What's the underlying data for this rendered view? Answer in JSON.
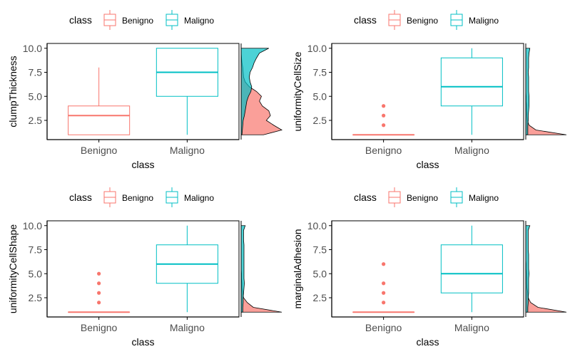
{
  "colors": {
    "benigno": "#F8766D",
    "maligno": "#00BFC4",
    "benigno_fill": "#F8766D",
    "maligno_fill": "#00BFC4",
    "axis": "#000000",
    "tick_text": "#4d4d4d"
  },
  "chart_data": [
    {
      "type": "box",
      "xlabel": "class",
      "ylabel": "clumpThickness",
      "legend": {
        "title": "class",
        "entries": [
          "Benigno",
          "Maligno"
        ],
        "placement": "top"
      },
      "categories": [
        "Benigno",
        "Maligno"
      ],
      "ylim": [
        0.5,
        10.5
      ],
      "yticks": [
        "2.5",
        "5.0",
        "7.5",
        "10.0"
      ],
      "ytick_values": [
        2.5,
        5.0,
        7.5,
        10.0
      ],
      "boxes": [
        {
          "name": "Benigno",
          "min": 1,
          "q1": 1,
          "median": 3,
          "q3": 4,
          "max": 8,
          "outliers": []
        },
        {
          "name": "Maligno",
          "min": 1,
          "q1": 5,
          "median": 7.5,
          "q3": 10,
          "max": 10,
          "outliers": []
        }
      ],
      "density": {
        "y": [
          1,
          1.5,
          2,
          2.5,
          3,
          3.5,
          4,
          4.5,
          5,
          5.5,
          6,
          6.5,
          7,
          7.5,
          8,
          8.5,
          9,
          9.5,
          10
        ],
        "Benigno": [
          0.55,
          1.0,
          0.8,
          0.62,
          0.72,
          0.68,
          0.52,
          0.45,
          0.5,
          0.38,
          0.2,
          0.1,
          0.06,
          0.05,
          0.04,
          0.02,
          0.01,
          0.0,
          0.0
        ],
        "Maligno": [
          0.02,
          0.03,
          0.04,
          0.05,
          0.08,
          0.1,
          0.12,
          0.14,
          0.18,
          0.24,
          0.26,
          0.22,
          0.2,
          0.22,
          0.28,
          0.32,
          0.38,
          0.45,
          0.68
        ]
      }
    },
    {
      "type": "box",
      "xlabel": "class",
      "ylabel": "uniformityCellSize",
      "legend": {
        "title": "class",
        "entries": [
          "Benigno",
          "Maligno"
        ],
        "placement": "top"
      },
      "categories": [
        "Benigno",
        "Maligno"
      ],
      "ylim": [
        0.5,
        10.5
      ],
      "yticks": [
        "2.5",
        "5.0",
        "7.5",
        "10.0"
      ],
      "ytick_values": [
        2.5,
        5.0,
        7.5,
        10.0
      ],
      "boxes": [
        {
          "name": "Benigno",
          "min": 1,
          "q1": 1,
          "median": 1,
          "q3": 1,
          "max": 1,
          "outliers": [
            2,
            3,
            4
          ]
        },
        {
          "name": "Maligno",
          "min": 1,
          "q1": 4,
          "median": 6,
          "q3": 9,
          "max": 10,
          "outliers": []
        }
      ],
      "density": {
        "y": [
          1,
          1.5,
          2,
          2.5,
          3,
          3.5,
          4,
          4.5,
          5,
          5.5,
          6,
          6.5,
          7,
          7.5,
          8,
          8.5,
          9,
          9.5,
          10
        ],
        "Benigno": [
          1.0,
          0.25,
          0.08,
          0.04,
          0.03,
          0.02,
          0.02,
          0.01,
          0.01,
          0.0,
          0.0,
          0.0,
          0.0,
          0.0,
          0.0,
          0.0,
          0.0,
          0.0,
          0.0
        ],
        "Maligno": [
          0.05,
          0.05,
          0.05,
          0.06,
          0.06,
          0.07,
          0.08,
          0.08,
          0.08,
          0.07,
          0.07,
          0.07,
          0.07,
          0.06,
          0.07,
          0.07,
          0.07,
          0.08,
          0.1
        ]
      }
    },
    {
      "type": "box",
      "xlabel": "class",
      "ylabel": "uniformityCellShape",
      "legend": {
        "title": "class",
        "entries": [
          "Benigno",
          "Maligno"
        ],
        "placement": "top"
      },
      "categories": [
        "Benigno",
        "Maligno"
      ],
      "ylim": [
        0.5,
        10.5
      ],
      "yticks": [
        "2.5",
        "5.0",
        "7.5",
        "10.0"
      ],
      "ytick_values": [
        2.5,
        5.0,
        7.5,
        10.0
      ],
      "boxes": [
        {
          "name": "Benigno",
          "min": 1,
          "q1": 1,
          "median": 1,
          "q3": 1,
          "max": 1,
          "outliers": [
            2,
            3,
            4,
            5
          ]
        },
        {
          "name": "Maligno",
          "min": 1,
          "q1": 4,
          "median": 6,
          "q3": 8,
          "max": 10,
          "outliers": []
        }
      ],
      "density": {
        "y": [
          1,
          1.5,
          2,
          2.5,
          3,
          3.5,
          4,
          4.5,
          5,
          5.5,
          6,
          6.5,
          7,
          7.5,
          8,
          8.5,
          9,
          9.5,
          10
        ],
        "Benigno": [
          1.0,
          0.3,
          0.15,
          0.06,
          0.04,
          0.02,
          0.02,
          0.01,
          0.01,
          0.0,
          0.0,
          0.0,
          0.0,
          0.0,
          0.0,
          0.0,
          0.0,
          0.0,
          0.0
        ],
        "Maligno": [
          0.04,
          0.04,
          0.05,
          0.05,
          0.06,
          0.07,
          0.08,
          0.07,
          0.07,
          0.07,
          0.07,
          0.07,
          0.07,
          0.07,
          0.07,
          0.06,
          0.06,
          0.06,
          0.1
        ]
      }
    },
    {
      "type": "box",
      "xlabel": "class",
      "ylabel": "marginalAdhesion",
      "legend": {
        "title": "class",
        "entries": [
          "Benigno",
          "Maligno"
        ],
        "placement": "top"
      },
      "categories": [
        "Benigno",
        "Maligno"
      ],
      "ylim": [
        0.5,
        10.5
      ],
      "yticks": [
        "2.5",
        "5.0",
        "7.5",
        "10.0"
      ],
      "ytick_values": [
        2.5,
        5.0,
        7.5,
        10.0
      ],
      "boxes": [
        {
          "name": "Benigno",
          "min": 1,
          "q1": 1,
          "median": 1,
          "q3": 1,
          "max": 1,
          "outliers": [
            2,
            3,
            4,
            6
          ]
        },
        {
          "name": "Maligno",
          "min": 1,
          "q1": 3,
          "median": 5,
          "q3": 8,
          "max": 10,
          "outliers": []
        }
      ],
      "density": {
        "y": [
          1,
          1.5,
          2,
          2.5,
          3,
          3.5,
          4,
          4.5,
          5,
          5.5,
          6,
          6.5,
          7,
          7.5,
          8,
          8.5,
          9,
          9.5,
          10
        ],
        "Benigno": [
          1.0,
          0.3,
          0.12,
          0.06,
          0.05,
          0.03,
          0.02,
          0.02,
          0.02,
          0.01,
          0.01,
          0.0,
          0.0,
          0.0,
          0.0,
          0.0,
          0.0,
          0.0,
          0.0
        ],
        "Maligno": [
          0.05,
          0.05,
          0.06,
          0.06,
          0.07,
          0.07,
          0.07,
          0.07,
          0.08,
          0.07,
          0.07,
          0.07,
          0.07,
          0.06,
          0.06,
          0.06,
          0.06,
          0.06,
          0.1
        ]
      }
    }
  ]
}
